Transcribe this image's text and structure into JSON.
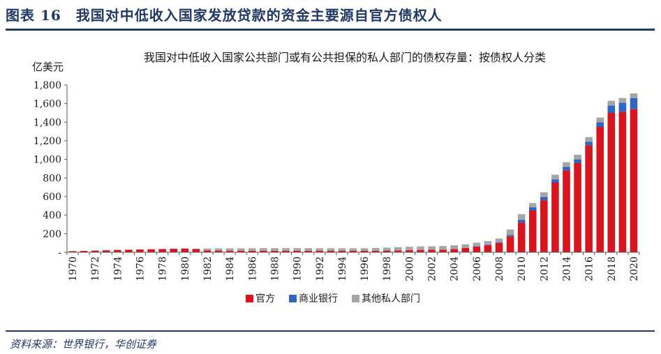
{
  "figure": {
    "title": "图表 16　我国对中低收入国家发放贷款的资金主要源自官方债权人",
    "source": "资料来源：世界银行，华创证券"
  },
  "colors": {
    "accent": "#1f3864",
    "official": "#d9141e",
    "commercial": "#2f65c5",
    "other": "#a6a6a6"
  },
  "chart_data": {
    "type": "bar",
    "stacked": true,
    "title": "我国对中低收入国家公共部门或有公共担保的私人部门的债权存量：按债权人分类",
    "ylabel": "亿美元",
    "xlabel": "",
    "ylim": [
      0,
      1800
    ],
    "yticks": [
      "-",
      "200",
      "400",
      "600",
      "800",
      "1,000",
      "1,200",
      "1,400",
      "1,600",
      "1,800"
    ],
    "grid": false,
    "legend_position": "bottom",
    "categories": [
      1970,
      1971,
      1972,
      1973,
      1974,
      1975,
      1976,
      1977,
      1978,
      1979,
      1980,
      1981,
      1982,
      1983,
      1984,
      1985,
      1986,
      1987,
      1988,
      1989,
      1990,
      1991,
      1992,
      1993,
      1994,
      1995,
      1996,
      1997,
      1998,
      1999,
      2000,
      2001,
      2002,
      2003,
      2004,
      2005,
      2006,
      2007,
      2008,
      2009,
      2010,
      2011,
      2012,
      2013,
      2014,
      2015,
      2016,
      2017,
      2018,
      2019,
      2020
    ],
    "xtick_labels": [
      "1970",
      "1972",
      "1974",
      "1976",
      "1978",
      "1980",
      "1982",
      "1984",
      "1986",
      "1988",
      "1990",
      "1992",
      "1994",
      "1996",
      "1998",
      "2000",
      "2002",
      "2004",
      "2006",
      "2008",
      "2010",
      "2012",
      "2014",
      "2016",
      "2018",
      "2020"
    ],
    "series": [
      {
        "name": "官方",
        "color": "#d9141e",
        "values": [
          12,
          15,
          18,
          21,
          25,
          27,
          30,
          32,
          35,
          38,
          40,
          36,
          20,
          18,
          17,
          16,
          16,
          16,
          16,
          16,
          16,
          16,
          15,
          15,
          15,
          15,
          15,
          16,
          18,
          20,
          22,
          25,
          26,
          28,
          35,
          45,
          60,
          75,
          100,
          170,
          320,
          450,
          560,
          750,
          880,
          960,
          1150,
          1350,
          1500,
          1510,
          1540
        ]
      },
      {
        "name": "商业银行",
        "color": "#2f65c5",
        "values": [
          0,
          0,
          0,
          0,
          0,
          0,
          0,
          0,
          0,
          0,
          0,
          0,
          0,
          0,
          0,
          0,
          0,
          0,
          0,
          0,
          0,
          0,
          0,
          0,
          0,
          0,
          0,
          0,
          0,
          0,
          0,
          0,
          0,
          0,
          0,
          0,
          3,
          5,
          8,
          15,
          30,
          35,
          35,
          35,
          40,
          40,
          40,
          50,
          80,
          100,
          120
        ]
      },
      {
        "name": "其他私人部门",
        "color": "#a6a6a6",
        "values": [
          0,
          0,
          0,
          0,
          0,
          0,
          0,
          0,
          0,
          0,
          0,
          0,
          20,
          24,
          25,
          26,
          27,
          28,
          28,
          28,
          28,
          28,
          28,
          28,
          28,
          28,
          28,
          30,
          32,
          35,
          37,
          38,
          38,
          40,
          40,
          40,
          40,
          40,
          40,
          60,
          60,
          45,
          50,
          50,
          50,
          50,
          50,
          50,
          50,
          50,
          50
        ]
      }
    ]
  }
}
